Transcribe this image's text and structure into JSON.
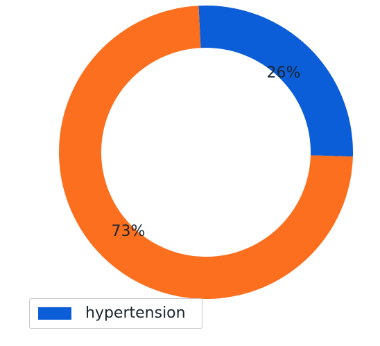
{
  "chart_data": {
    "type": "pie",
    "style": "donut",
    "categories": [
      "hypertension",
      ""
    ],
    "values": [
      26,
      73
    ],
    "value_labels": [
      "26%",
      "73%"
    ],
    "colors": [
      "#0b5ed7",
      "#fb6f1e"
    ],
    "legend": {
      "placement": "bottom-left",
      "entries": [
        {
          "label": "hypertension",
          "color": "#0b5ed7"
        }
      ]
    }
  }
}
